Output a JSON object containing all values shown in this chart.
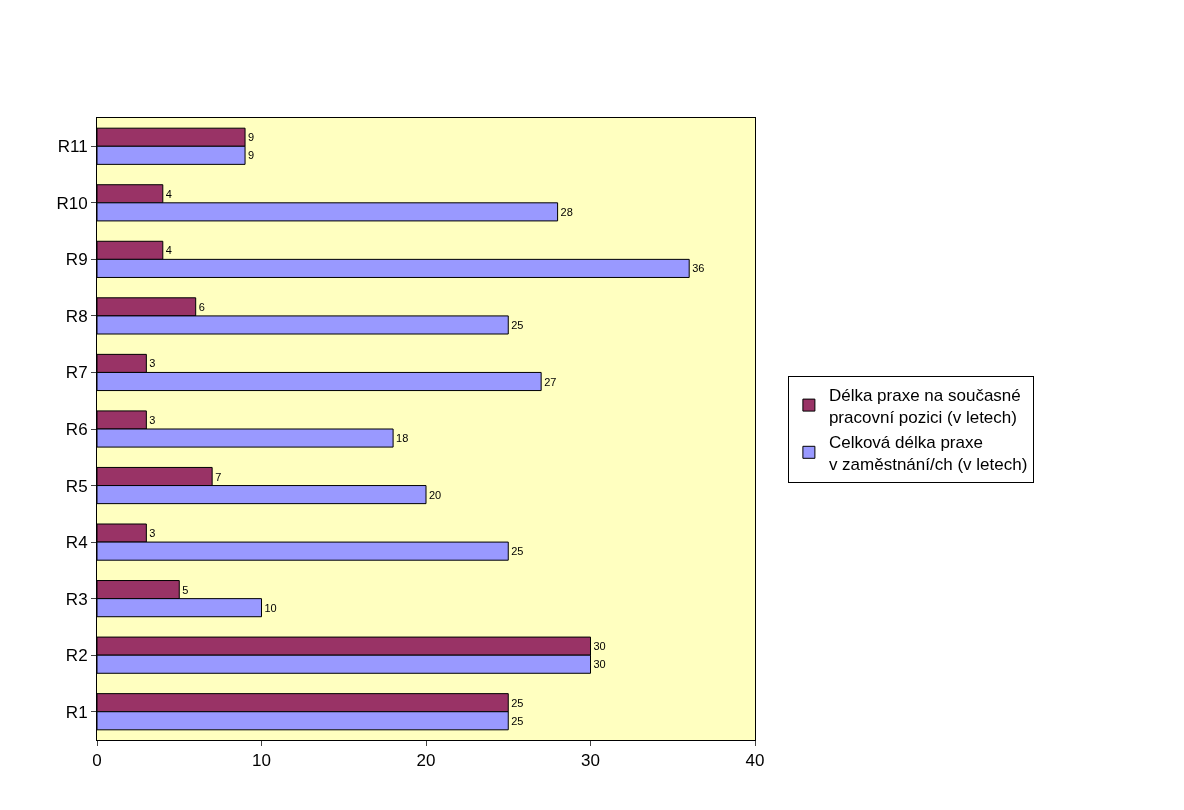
{
  "chart_data": {
    "type": "bar",
    "orientation": "horizontal",
    "categories": [
      "R11",
      "R10",
      "R9",
      "R8",
      "R7",
      "R6",
      "R5",
      "R4",
      "R3",
      "R2",
      "R1"
    ],
    "series": [
      {
        "name": "Délka praxe na současné\npracovní pozici (v letech)",
        "color": "#993366",
        "values": [
          9,
          4,
          4,
          6,
          3,
          3,
          7,
          3,
          5,
          30,
          25
        ]
      },
      {
        "name": "Celková délka praxe\nv zaměstnání/ch (v letech)",
        "color": "#9999ff",
        "values": [
          9,
          28,
          36,
          25,
          27,
          18,
          20,
          25,
          10,
          30,
          25
        ]
      }
    ],
    "xlim": [
      0,
      40
    ],
    "xticks": [
      0,
      10,
      20,
      30,
      40
    ],
    "grid": false,
    "legend": "right",
    "data_labels": true
  }
}
